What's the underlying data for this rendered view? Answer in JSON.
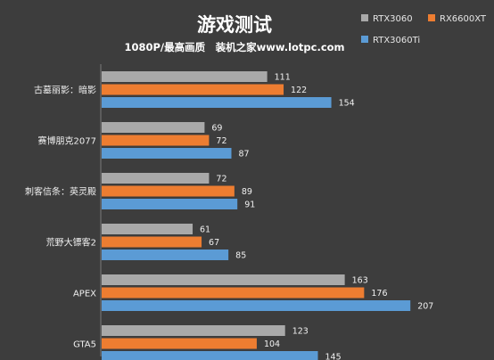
{
  "chart_data": {
    "type": "bar",
    "orientation": "horizontal",
    "title": "游戏测试",
    "subtitle": "1080P/最高画质　装机之家www.lotpc.com",
    "categories": [
      "古墓丽影：暗影",
      "赛博朋克2077",
      "刺客信条：英灵殿",
      "荒野大镖客2",
      "APEX",
      "GTA5"
    ],
    "series": [
      {
        "name": "RTX3060",
        "color": "#a9a9a9",
        "values": [
          111,
          69,
          72,
          61,
          163,
          123
        ]
      },
      {
        "name": "RX6600XT",
        "color": "#ed7d31",
        "values": [
          122,
          72,
          89,
          67,
          176,
          104
        ]
      },
      {
        "name": "RTX3060Ti",
        "color": "#5b9bd5",
        "values": [
          154,
          87,
          91,
          85,
          207,
          145
        ]
      }
    ],
    "legend_position": "top-right",
    "grid": false,
    "xlabel": "",
    "ylabel": ""
  }
}
